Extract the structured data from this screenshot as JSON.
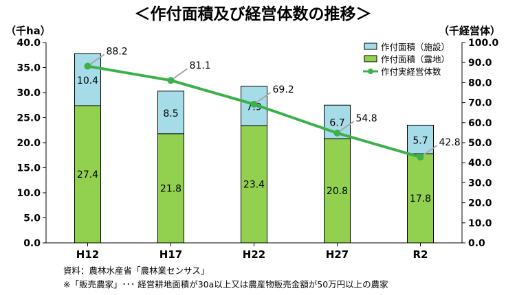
{
  "chart_data": {
    "type": "bar+line",
    "title": "＜作付面積及び経営体数の推移＞",
    "categories": [
      "H12",
      "H17",
      "H22",
      "H27",
      "R2"
    ],
    "left_axis": {
      "unit_label": "（千ha）",
      "ylim": [
        0,
        40
      ],
      "ticks": [
        "0.0",
        "5.0",
        "10.0",
        "15.0",
        "20.0",
        "25.0",
        "30.0",
        "35.0",
        "40.0"
      ]
    },
    "right_axis": {
      "unit_label": "（千経営体）",
      "ylim": [
        0,
        100
      ],
      "ticks": [
        "0.0",
        "10.0",
        "20.0",
        "30.0",
        "40.0",
        "50.0",
        "60.0",
        "70.0",
        "80.0",
        "90.0",
        "100.0"
      ]
    },
    "series": [
      {
        "name": "作付面積（露地）",
        "type": "stacked-bar",
        "axis": "left",
        "color": "#92d050",
        "values": [
          27.4,
          21.8,
          23.4,
          20.8,
          17.8
        ],
        "labels": [
          "27.4",
          "21.8",
          "23.4",
          "20.8",
          "17.8"
        ]
      },
      {
        "name": "作付面積（施設）",
        "type": "stacked-bar",
        "axis": "left",
        "color": "#a6dbe8",
        "values": [
          10.4,
          8.5,
          7.9,
          6.7,
          5.7
        ],
        "labels": [
          "10.4",
          "8.5",
          "7.9",
          "6.7",
          "5.7"
        ]
      },
      {
        "name": "作付実経営体数",
        "type": "line",
        "axis": "right",
        "color": "#3cb04a",
        "values": [
          88.2,
          81.1,
          69.2,
          54.8,
          42.8
        ],
        "labels": [
          "88.2",
          "81.1",
          "69.2",
          "54.8",
          "42.8"
        ]
      }
    ],
    "legend": [
      {
        "name": "作付面積（施設）",
        "kind": "box",
        "color": "#a6dbe8"
      },
      {
        "name": "作付面積（露地）",
        "kind": "box",
        "color": "#92d050"
      },
      {
        "name": "作付実経営体数",
        "kind": "line",
        "color": "#3cb04a"
      }
    ],
    "legend_position": "top-right"
  },
  "notes": {
    "source": "資料：農林水産省「農林業センサス」",
    "footnote": "※「販売農家」･･･ 経営耕地面積が30a以上又は農産物販売金額が50万円以上の農家"
  }
}
